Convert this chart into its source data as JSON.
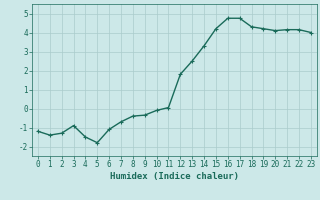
{
  "x": [
    0,
    1,
    2,
    3,
    4,
    5,
    6,
    7,
    8,
    9,
    10,
    11,
    12,
    13,
    14,
    15,
    16,
    17,
    18,
    19,
    20,
    21,
    22,
    23
  ],
  "y": [
    -1.2,
    -1.4,
    -1.3,
    -0.9,
    -1.5,
    -1.8,
    -1.1,
    -0.7,
    -0.4,
    -0.35,
    -0.1,
    0.05,
    1.8,
    2.5,
    3.3,
    4.2,
    4.75,
    4.75,
    4.3,
    4.2,
    4.1,
    4.15,
    4.15,
    4.0
  ],
  "line_color": "#1a6b5a",
  "marker": "+",
  "marker_size": 3,
  "background_color": "#cce8e8",
  "grid_color": "#aacccc",
  "xlabel": "Humidex (Indice chaleur)",
  "xlim": [
    -0.5,
    23.5
  ],
  "ylim": [
    -2.5,
    5.5
  ],
  "yticks": [
    -2,
    -1,
    0,
    1,
    2,
    3,
    4,
    5
  ],
  "xticks": [
    0,
    1,
    2,
    3,
    4,
    5,
    6,
    7,
    8,
    9,
    10,
    11,
    12,
    13,
    14,
    15,
    16,
    17,
    18,
    19,
    20,
    21,
    22,
    23
  ],
  "tick_label_color": "#1a6b5a",
  "tick_label_fontsize": 5.5,
  "xlabel_fontsize": 6.5,
  "line_width": 1.0,
  "marker_color": "#1a6b5a",
  "spine_color": "#1a6b5a"
}
